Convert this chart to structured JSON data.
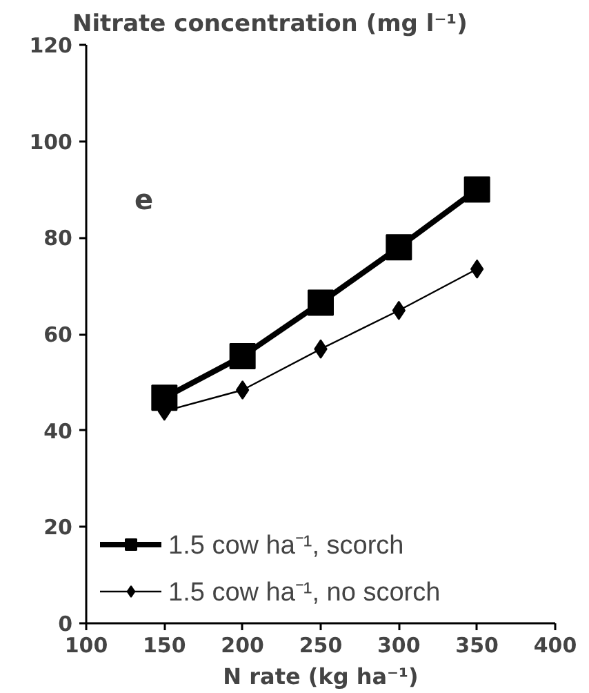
{
  "chart_data": {
    "type": "line",
    "title": "Nitrate concentration (mg l⁻¹)",
    "xlabel": "N rate (kg ha⁻¹)",
    "annotations": [
      "e"
    ],
    "x": [
      150,
      200,
      250,
      300,
      350
    ],
    "series": [
      {
        "name": "1.5 cow ha⁻¹, scorch",
        "color": "#000000",
        "marker": "square",
        "values": [
          46.8,
          55.4,
          66.5,
          78,
          90
        ]
      },
      {
        "name": "1.5 cow ha⁻¹, no scorch",
        "color": "#000000",
        "marker": "diamond",
        "values": [
          44,
          48.4,
          56.9,
          64.9,
          73.5
        ]
      }
    ],
    "xlim": [
      100,
      400
    ],
    "ylim": [
      0,
      120
    ],
    "xticks": [
      100,
      150,
      200,
      250,
      300,
      350,
      400
    ],
    "yticks": [
      0,
      20,
      40,
      60,
      80,
      100,
      120
    ],
    "grid": false,
    "legend": "bottom left"
  }
}
